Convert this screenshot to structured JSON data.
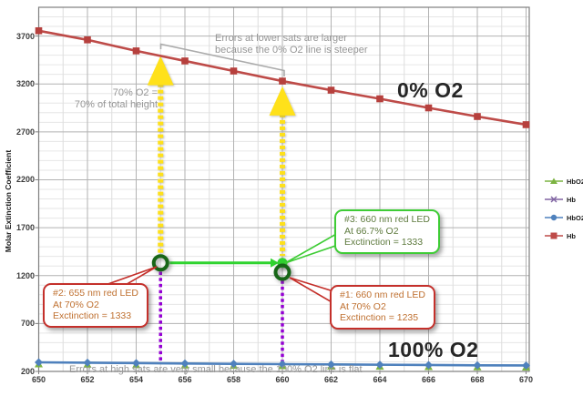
{
  "chart_data": {
    "type": "line",
    "title": "",
    "xlabel": "",
    "ylabel": "Molar Extinction Coefficient",
    "x": [
      650,
      652,
      654,
      656,
      658,
      660,
      662,
      664,
      666,
      668,
      670
    ],
    "x_ticks": [
      650,
      652,
      654,
      656,
      658,
      660,
      662,
      664,
      666,
      668,
      670
    ],
    "y_ticks": [
      200,
      700,
      1200,
      1700,
      2200,
      2700,
      3200,
      3700
    ],
    "xlim": [
      650,
      670
    ],
    "ylim": [
      200,
      4000
    ],
    "grid": true,
    "legend_position": "right",
    "series": [
      {
        "name": "HbO2",
        "color": "#7cb342",
        "marker": "triangle",
        "values": [
          295,
          291,
          287,
          283,
          279,
          276,
          273,
          270,
          267,
          264,
          262
        ]
      },
      {
        "name": "Hb",
        "color": "#8064a2",
        "marker": "x",
        "values": [
          3755,
          3660,
          3545,
          3440,
          3335,
          3230,
          3135,
          3045,
          2950,
          2860,
          2775
        ]
      },
      {
        "name": "HbO2",
        "color": "#4f81bd",
        "marker": "diamond",
        "values": [
          295,
          291,
          287,
          283,
          279,
          276,
          273,
          270,
          267,
          264,
          262
        ]
      },
      {
        "name": "Hb",
        "color": "#be4b48",
        "marker": "square",
        "values": [
          3755,
          3660,
          3545,
          3440,
          3335,
          3230,
          3135,
          3045,
          2950,
          2860,
          2775
        ]
      }
    ]
  },
  "labels": {
    "pct0": "0% O2",
    "pct100": "100% O2",
    "y_axis_title": "Molar Extinction Coefficient"
  },
  "notes": {
    "lower_sats": "Errors at lower sats are larger\nbecause the 0% O2 line is steeper",
    "seventy": "70% O2 =\n70% of total height",
    "high_sats": "Errors at high sats are very small because the 100% O2 line is flat"
  },
  "callouts": {
    "c1": {
      "text": "#1: 660 nm red LED\nAt 70% O2\nExctinction = 1235",
      "border_color": "#c4302b",
      "anchor_x": 660,
      "anchor_value": 1235
    },
    "c2": {
      "text": "#2: 655 nm red LED\nAt 70% O2\nExctinction = 1333",
      "border_color": "#c4302b",
      "anchor_x": 655,
      "anchor_value": 1333
    },
    "c3": {
      "text": "#3: 660 nm red LED\nAt 66.7% O2\nExctinction = 1333",
      "border_color": "#3ecc35",
      "anchor_x": 660,
      "anchor_value": 1333
    }
  },
  "annotations": {
    "yellow_arrows": [
      {
        "x": 655,
        "tip_value": 3490,
        "base_value": 1405
      },
      {
        "x": 660,
        "tip_value": 3175,
        "base_value": 1405
      }
    ],
    "purple_drop_lines": [
      {
        "x": 655,
        "top_value": 1240,
        "bottom_value": 290
      },
      {
        "x": 660,
        "top_value": 1148,
        "bottom_value": 290
      }
    ],
    "ring_markers": [
      {
        "x": 655,
        "value": 1333
      },
      {
        "x": 660,
        "value": 1235
      }
    ],
    "green_dot": {
      "x": 660,
      "value": 1333
    },
    "green_arrow": {
      "from_x": 655,
      "to_x": 660,
      "value": 1333
    },
    "colors": {
      "yellow": "#ffe11a",
      "purple_dotted": "#9400d3",
      "green_annotation": "#2fd32f",
      "ring_green": "#176617",
      "bracket_gray": "#ababab"
    }
  },
  "legend": [
    {
      "label": "HbO2",
      "color": "#7cb342",
      "marker": "triangle"
    },
    {
      "label": "Hb",
      "color": "#8064a2",
      "marker": "x"
    },
    {
      "label": "HbO2",
      "color": "#4f81bd",
      "marker": "diamond"
    },
    {
      "label": "Hb",
      "color": "#be4b48",
      "marker": "square"
    }
  ]
}
